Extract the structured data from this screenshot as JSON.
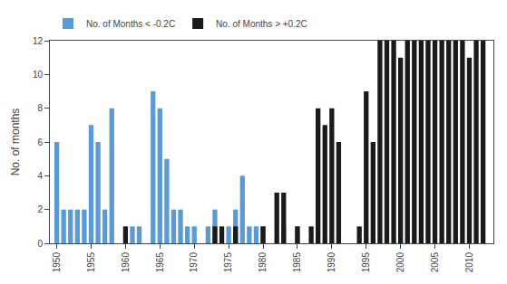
{
  "chart_data": {
    "type": "bar",
    "ylabel": "No. of months",
    "x": [
      1950,
      1951,
      1952,
      1953,
      1954,
      1955,
      1956,
      1957,
      1958,
      1959,
      1960,
      1961,
      1962,
      1963,
      1964,
      1965,
      1966,
      1967,
      1968,
      1969,
      1970,
      1971,
      1972,
      1973,
      1974,
      1975,
      1976,
      1977,
      1978,
      1979,
      1980,
      1981,
      1982,
      1983,
      1984,
      1985,
      1986,
      1987,
      1988,
      1989,
      1990,
      1991,
      1992,
      1993,
      1994,
      1995,
      1996,
      1997,
      1998,
      1999,
      2000,
      2001,
      2002,
      2003,
      2004,
      2005,
      2006,
      2007,
      2008,
      2009,
      2010,
      2011,
      2012
    ],
    "series": [
      {
        "name": "No. of Months < -0.2C",
        "color": "#5B9BD5",
        "values": [
          6,
          2,
          2,
          2,
          2,
          7,
          6,
          2,
          8,
          0,
          0,
          1,
          1,
          0,
          9,
          8,
          5,
          2,
          2,
          1,
          1,
          0,
          1,
          2,
          0,
          1,
          2,
          4,
          1,
          1,
          1,
          0,
          0,
          1,
          0,
          1,
          0,
          0,
          0,
          0,
          0,
          0,
          0,
          0,
          0,
          0,
          0,
          0,
          0,
          0,
          0,
          0,
          0,
          0,
          0,
          0,
          0,
          0,
          0,
          0,
          0,
          0,
          0
        ]
      },
      {
        "name": "No. of Months > +0.2C",
        "color": "#1A1A1A",
        "values": [
          0,
          0,
          0,
          0,
          0,
          0,
          0,
          0,
          0,
          0,
          1,
          0,
          0,
          0,
          0,
          0,
          0,
          0,
          0,
          0,
          0,
          0,
          0,
          1,
          1,
          0,
          1,
          0,
          0,
          0,
          1,
          0,
          3,
          3,
          0,
          1,
          0,
          1,
          8,
          7,
          8,
          6,
          0,
          0,
          1,
          9,
          6,
          12,
          12,
          12,
          11,
          12,
          12,
          12,
          12,
          12,
          12,
          12,
          12,
          12,
          11,
          12,
          12
        ]
      }
    ],
    "xlim": [
      1949.0,
      2013.5
    ],
    "xticks": [
      1950,
      1955,
      1960,
      1965,
      1970,
      1975,
      1980,
      1985,
      1990,
      1995,
      2000,
      2005,
      2010
    ],
    "ylim": [
      0,
      12
    ],
    "yticks": [
      0,
      2,
      4,
      6,
      8,
      10,
      12
    ],
    "grid": false,
    "legend": "upper left"
  }
}
